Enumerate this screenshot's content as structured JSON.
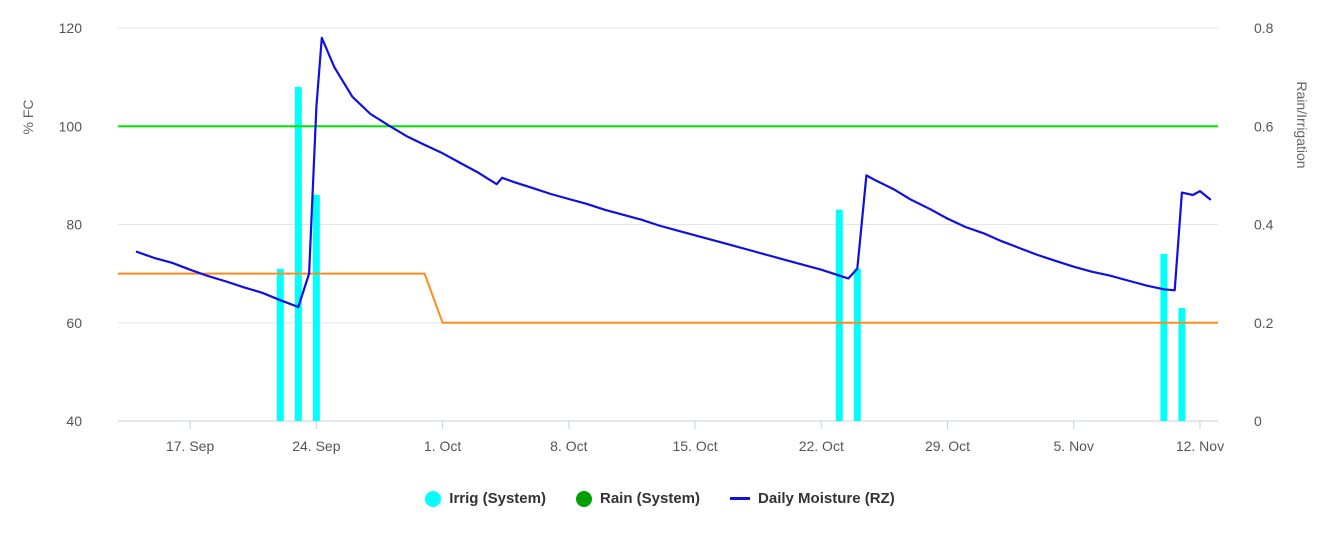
{
  "chart_data": {
    "type": "bar+line",
    "yaxis_left": {
      "label": "% FC",
      "range": [
        40,
        120
      ],
      "ticks": [
        40,
        60,
        80,
        100,
        120
      ]
    },
    "yaxis_right": {
      "label": "Rain/Irrigation",
      "range": [
        0,
        0.8
      ],
      "ticks": [
        "0",
        "0.2",
        "0.4",
        "0.6",
        "0.8"
      ]
    },
    "xaxis": {
      "start": "2021-09-13",
      "end": "2021-11-13",
      "ticks": [
        {
          "date": "2021-09-17",
          "label": "17. Sep"
        },
        {
          "date": "2021-09-24",
          "label": "24. Sep"
        },
        {
          "date": "2021-10-01",
          "label": "1. Oct"
        },
        {
          "date": "2021-10-08",
          "label": "8. Oct"
        },
        {
          "date": "2021-10-15",
          "label": "15. Oct"
        },
        {
          "date": "2021-10-22",
          "label": "22. Oct"
        },
        {
          "date": "2021-10-29",
          "label": "29. Oct"
        },
        {
          "date": "2021-11-05",
          "label": "5. Nov"
        },
        {
          "date": "2021-11-12",
          "label": "12. Nov"
        }
      ]
    },
    "grid": "horizontal",
    "legend_position": "bottom-center",
    "series": [
      {
        "name": "Irrig (System)",
        "type": "bar",
        "axis": "right",
        "color": "#00ffff",
        "points": [
          [
            "2021-09-22",
            0.31
          ],
          [
            "2021-09-23",
            0.68
          ],
          [
            "2021-09-24",
            0.46
          ],
          [
            "2021-10-23",
            0.43
          ],
          [
            "2021-10-24",
            0.31
          ],
          [
            "2021-11-10",
            0.34
          ],
          [
            "2021-11-11",
            0.23
          ]
        ]
      },
      {
        "name": "Rain (System)",
        "type": "bar",
        "axis": "right",
        "color": "#00a000",
        "points": []
      },
      {
        "name": "Daily Moisture (RZ)",
        "type": "line",
        "axis": "left",
        "color": "#1010e0",
        "points": [
          [
            "2021-09-14",
            74.5
          ],
          [
            "2021-09-15",
            73.2
          ],
          [
            "2021-09-16",
            72.2
          ],
          [
            "2021-09-17",
            70.8
          ],
          [
            "2021-09-18",
            69.5
          ],
          [
            "2021-09-19",
            68.4
          ],
          [
            "2021-09-20",
            67.2
          ],
          [
            "2021-09-21",
            66.1
          ],
          [
            "2021-09-22",
            64.6
          ],
          [
            "2021-09-23",
            63.2
          ],
          [
            "2021-09-23.6",
            70.0
          ],
          [
            "2021-09-24",
            104.0
          ],
          [
            "2021-09-24.3",
            118.0
          ],
          [
            "2021-09-25",
            112.0
          ],
          [
            "2021-09-26",
            106.0
          ],
          [
            "2021-09-27",
            102.5
          ],
          [
            "2021-09-28",
            100.2
          ],
          [
            "2021-09-29",
            98.0
          ],
          [
            "2021-09-30",
            96.2
          ],
          [
            "2021-10-01",
            94.5
          ],
          [
            "2021-10-02",
            92.5
          ],
          [
            "2021-10-03",
            90.5
          ],
          [
            "2021-10-04",
            88.2
          ],
          [
            "2021-10-04.3",
            89.5
          ],
          [
            "2021-10-05",
            88.6
          ],
          [
            "2021-10-06",
            87.4
          ],
          [
            "2021-10-07",
            86.2
          ],
          [
            "2021-10-08",
            85.2
          ],
          [
            "2021-10-09",
            84.2
          ],
          [
            "2021-10-10",
            83.0
          ],
          [
            "2021-10-11",
            82.0
          ],
          [
            "2021-10-12",
            81.0
          ],
          [
            "2021-10-13",
            79.8
          ],
          [
            "2021-10-14",
            78.8
          ],
          [
            "2021-10-15",
            77.8
          ],
          [
            "2021-10-16",
            76.8
          ],
          [
            "2021-10-17",
            75.8
          ],
          [
            "2021-10-18",
            74.8
          ],
          [
            "2021-10-19",
            73.8
          ],
          [
            "2021-10-20",
            72.8
          ],
          [
            "2021-10-21",
            71.8
          ],
          [
            "2021-10-22",
            70.8
          ],
          [
            "2021-10-23",
            69.6
          ],
          [
            "2021-10-23.5",
            69.0
          ],
          [
            "2021-10-24",
            71.0
          ],
          [
            "2021-10-24.5",
            90.0
          ],
          [
            "2021-10-25",
            89.0
          ],
          [
            "2021-10-26",
            87.2
          ],
          [
            "2021-10-27",
            85.0
          ],
          [
            "2021-10-28",
            83.2
          ],
          [
            "2021-10-29",
            81.2
          ],
          [
            "2021-10-30",
            79.5
          ],
          [
            "2021-10-31",
            78.2
          ],
          [
            "2021-11-01",
            76.6
          ],
          [
            "2021-11-02",
            75.2
          ],
          [
            "2021-11-03",
            73.8
          ],
          [
            "2021-11-04",
            72.6
          ],
          [
            "2021-11-05",
            71.4
          ],
          [
            "2021-11-06",
            70.4
          ],
          [
            "2021-11-07",
            69.6
          ],
          [
            "2021-11-08",
            68.6
          ],
          [
            "2021-11-09",
            67.6
          ],
          [
            "2021-11-10",
            66.8
          ],
          [
            "2021-11-10.6",
            66.6
          ],
          [
            "2021-11-11",
            86.5
          ],
          [
            "2021-11-11.6",
            86.0
          ],
          [
            "2021-11-12",
            86.8
          ],
          [
            "2021-11-12.6",
            85.0
          ]
        ]
      },
      {
        "name": "",
        "type": "line",
        "axis": "left",
        "color": "#00e600",
        "points": [
          [
            "2021-09-13",
            100
          ],
          [
            "2021-11-13",
            100
          ]
        ]
      },
      {
        "name": "",
        "type": "line",
        "axis": "left",
        "color": "#ff8c1a",
        "points": [
          [
            "2021-09-13",
            70
          ],
          [
            "2021-09-30",
            70
          ],
          [
            "2021-10-01",
            60
          ],
          [
            "2021-11-13",
            60
          ]
        ]
      }
    ]
  }
}
